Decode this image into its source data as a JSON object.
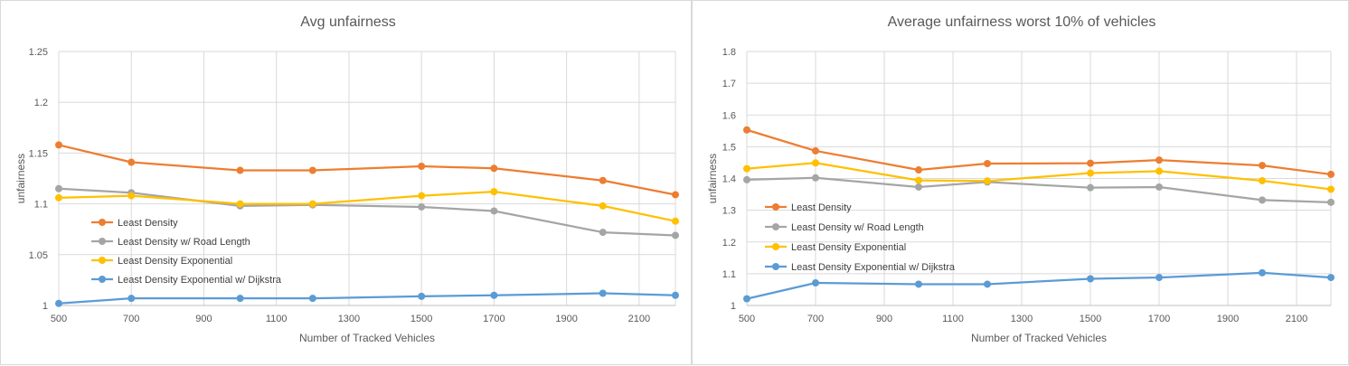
{
  "chart_data": [
    {
      "type": "line",
      "title": "Avg unfairness",
      "xlabel": "Number of Tracked Vehicles",
      "ylabel": "unfairness",
      "xlim": [
        500,
        2200
      ],
      "ylim": [
        1,
        1.25
      ],
      "x_ticks": [
        "500",
        "700",
        "900",
        "1100",
        "1300",
        "1500",
        "1700",
        "1900",
        "2100"
      ],
      "y_ticks": [
        "1",
        "1.05",
        "1.1",
        "1.15",
        "1.2",
        "1.25"
      ],
      "grid": true,
      "legend_position": "left",
      "x": [
        500,
        700,
        1000,
        1200,
        1500,
        1700,
        2000,
        2200
      ],
      "series": [
        {
          "name": "Least Density",
          "color": "#ED7D31",
          "values": [
            1.158,
            1.141,
            1.133,
            1.133,
            1.137,
            1.135,
            1.123,
            1.109
          ]
        },
        {
          "name": "Least Density w/ Road Length",
          "color": "#A5A5A5",
          "values": [
            1.115,
            1.111,
            1.098,
            1.099,
            1.097,
            1.093,
            1.072,
            1.069
          ]
        },
        {
          "name": "Least Density Exponential",
          "color": "#FFC000",
          "values": [
            1.106,
            1.108,
            1.1,
            1.1,
            1.108,
            1.112,
            1.098,
            1.083
          ]
        },
        {
          "name": "Least Density Exponential w/ Dijkstra",
          "color": "#5B9BD5",
          "values": [
            1.002,
            1.007,
            1.007,
            1.007,
            1.009,
            1.01,
            1.012,
            1.01
          ]
        }
      ]
    },
    {
      "type": "line",
      "title": "Average unfairness worst 10% of vehicles",
      "xlabel": "Number of Tracked Vehicles",
      "ylabel": "unfairness",
      "xlim": [
        500,
        2200
      ],
      "ylim": [
        1,
        1.8
      ],
      "x_ticks": [
        "500",
        "700",
        "900",
        "1100",
        "1300",
        "1500",
        "1700",
        "1900",
        "2100"
      ],
      "y_ticks": [
        "1",
        "1.1",
        "1.2",
        "1.3",
        "1.4",
        "1.5",
        "1.6",
        "1.7",
        "1.8"
      ],
      "grid": true,
      "legend_position": "left",
      "x": [
        500,
        700,
        1000,
        1200,
        1500,
        1700,
        2000,
        2200
      ],
      "series": [
        {
          "name": "Least Density",
          "color": "#ED7D31",
          "values": [
            1.553,
            1.487,
            1.427,
            1.447,
            1.448,
            1.458,
            1.441,
            1.413
          ]
        },
        {
          "name": "Least Density w/ Road Length",
          "color": "#A5A5A5",
          "values": [
            1.396,
            1.402,
            1.373,
            1.389,
            1.371,
            1.373,
            1.332,
            1.325
          ]
        },
        {
          "name": "Least Density Exponential",
          "color": "#FFC000",
          "values": [
            1.431,
            1.449,
            1.394,
            1.392,
            1.417,
            1.423,
            1.393,
            1.366
          ]
        },
        {
          "name": "Least Density Exponential w/ Dijkstra",
          "color": "#5B9BD5",
          "values": [
            1.021,
            1.071,
            1.067,
            1.067,
            1.084,
            1.088,
            1.103,
            1.088
          ]
        }
      ]
    }
  ]
}
